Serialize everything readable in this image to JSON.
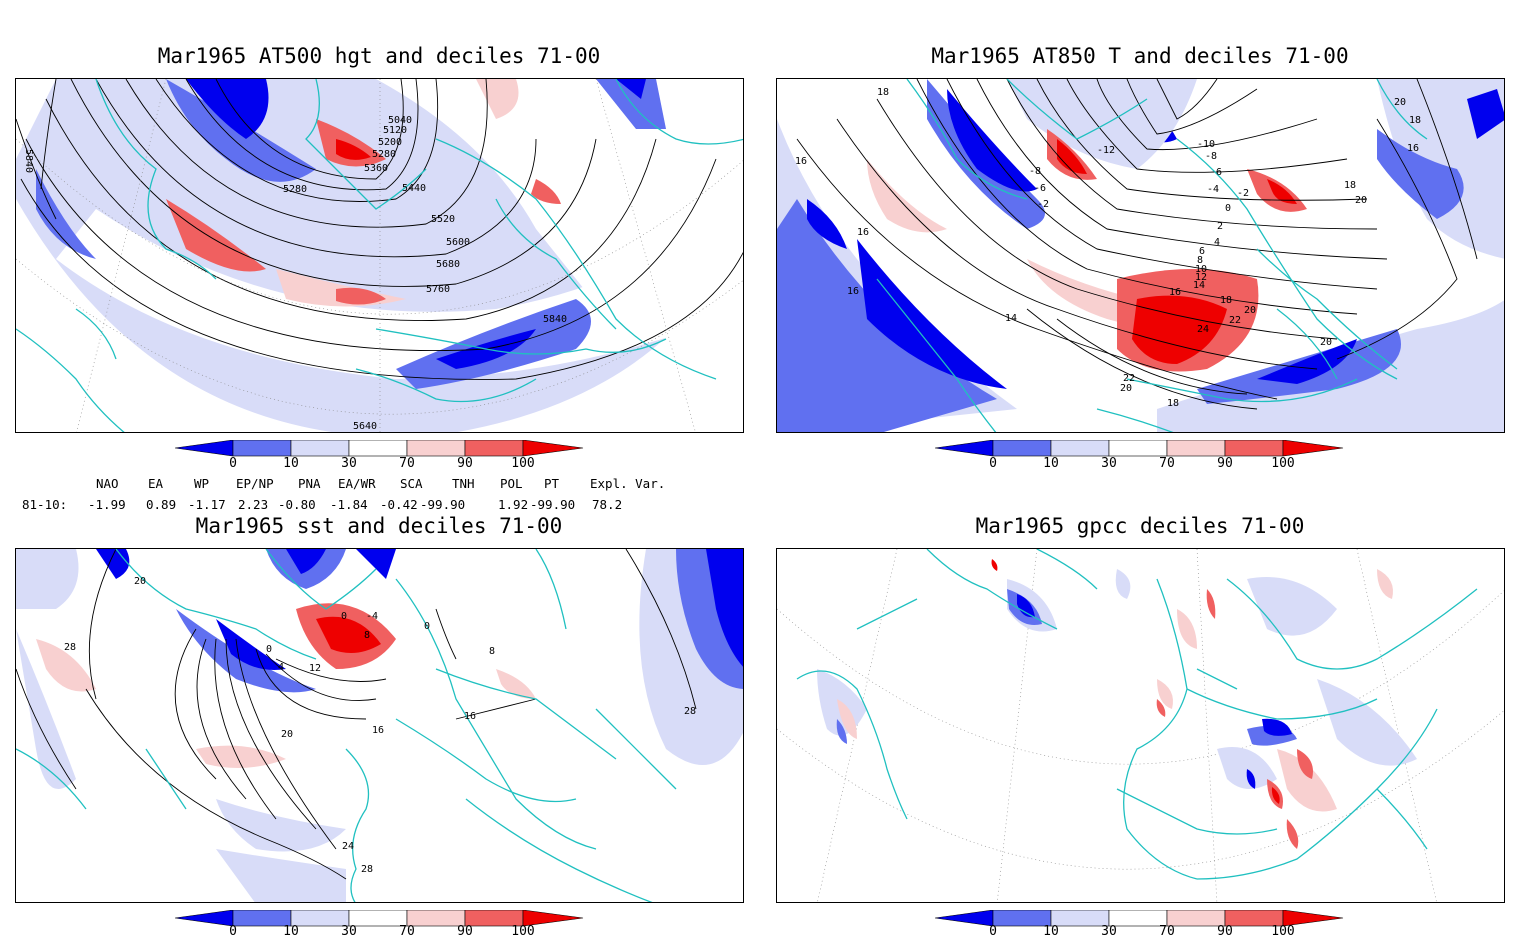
{
  "panels": [
    {
      "id": "p1",
      "title": "Mar1965 AT500 hgt and deciles 71-00",
      "contour_labels": [
        "5040",
        "5120",
        "5200",
        "5280",
        "5360",
        "5280",
        "5440",
        "5520",
        "5600",
        "5680",
        "5760",
        "5840",
        "5840",
        "5640"
      ]
    },
    {
      "id": "p2",
      "title": "Mar1965 AT850 T and deciles 71-00",
      "contour_labels": [
        "18",
        "16",
        "-8",
        "-6",
        "-2",
        "-12",
        "-10",
        "-8",
        "-6",
        "-4",
        "-2",
        "0",
        "2",
        "4",
        "6",
        "8",
        "10",
        "12",
        "14",
        "16",
        "18",
        "20",
        "22",
        "24",
        "16",
        "20",
        "18",
        "16",
        "18",
        "20",
        "22",
        "20",
        "18",
        "14",
        "16",
        "20"
      ]
    },
    {
      "id": "p3",
      "title": "Mar1965 sst and deciles 71-00",
      "contour_labels": [
        "28",
        "20",
        "20",
        "16",
        "12",
        "8",
        "4",
        "0",
        "-4",
        "0",
        "16",
        "24",
        "28",
        "28",
        "8",
        "0"
      ]
    },
    {
      "id": "p4",
      "title": "Mar1965 gpcc deciles 71-00",
      "contour_labels": []
    }
  ],
  "colorbar": {
    "labels": [
      "0",
      "10",
      "30",
      "70",
      "90",
      "100"
    ],
    "colors": [
      "#0000ee",
      "#6070f0",
      "#d8dcf8",
      "#ffffff",
      "#f8d0d0",
      "#f06060",
      "#ee0000"
    ]
  },
  "indices": {
    "headers": [
      "NAO",
      "EA",
      "WP",
      "EP/NP",
      "PNA",
      "EA/WR",
      "SCA",
      "TNH",
      "POL",
      "PT",
      "Expl. Var."
    ],
    "row_label": "81-10:",
    "values": [
      "-1.99",
      "0.89",
      "-1.17",
      "2.23",
      "-0.80",
      "-1.84",
      "-0.42",
      "-99.90",
      "1.92",
      "-99.90",
      "78.2"
    ]
  },
  "colors": {
    "land_outline": "#20c0c0",
    "decile_low": "#0000ee",
    "decile_mid_low": "#6070f0",
    "decile_light_low": "#d8dcf8",
    "decile_light_high": "#f8d0d0",
    "decile_mid_high": "#f06060",
    "decile_high": "#ee0000"
  }
}
